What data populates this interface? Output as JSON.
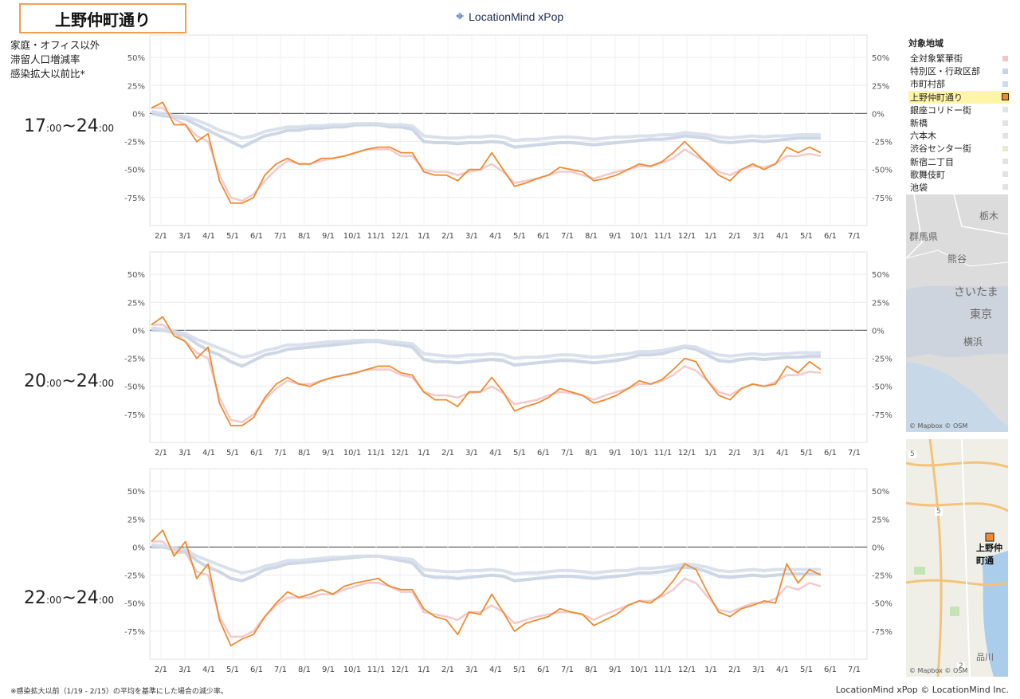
{
  "header": {
    "title": "上野仲町通り",
    "logo": "LocationMind xPop"
  },
  "metric_label": [
    "家庭・オフィス以外",
    "滞留人口増減率",
    "感染拡大以前比*"
  ],
  "time_labels": [
    {
      "start": "17",
      "min1": ":00",
      "sep": "~",
      "end": "24",
      "min2": ":00"
    },
    {
      "start": "20",
      "min1": ":00",
      "sep": "~",
      "end": "24",
      "min2": ":00"
    },
    {
      "start": "22",
      "min1": ":00",
      "sep": "~",
      "end": "24",
      "min2": ":00"
    }
  ],
  "legend": {
    "title": "対象地域",
    "items": [
      {
        "label": "全対象繁華街",
        "color": "#f2c4c4"
      },
      {
        "label": "特別区・行政区部",
        "color": "#c9d3e3"
      },
      {
        "label": "市町村部",
        "color": "#d0d9e8"
      },
      {
        "label": "上野仲町通り",
        "color": "#f08a30",
        "selected": true
      },
      {
        "label": "銀座コリドー街",
        "color": "#e3e3e3"
      },
      {
        "label": "新橋",
        "color": "#e3e3e3"
      },
      {
        "label": "六本木",
        "color": "#e3e3e3"
      },
      {
        "label": "渋谷センター街",
        "color": "#e3ecd0"
      },
      {
        "label": "新宿二丁目",
        "color": "#e3e3e3"
      },
      {
        "label": "歌舞伎町",
        "color": "#e3e3e3"
      },
      {
        "label": "池袋",
        "color": "#e3e3e3"
      }
    ]
  },
  "maps": {
    "map1": {
      "labels": [
        "栃木",
        "群馬県",
        "熊谷",
        "さいたま",
        "東京",
        "横浜"
      ],
      "credit": "© Mapbox © OSM"
    },
    "map2": {
      "labels": [
        "上野仲町通",
        "品川",
        "5",
        "5",
        "2"
      ],
      "credit": "© Mapbox © OSM"
    }
  },
  "chart_data": [
    {
      "type": "line",
      "title": "",
      "x_ticks": [
        "2/1",
        "3/1",
        "4/1",
        "5/1",
        "6/1",
        "7/1",
        "8/1",
        "9/1",
        "10/1",
        "11/1",
        "12/1",
        "1/1",
        "2/1",
        "3/1",
        "4/1",
        "5/1",
        "6/1",
        "7/1",
        "8/1",
        "9/1",
        "10/1",
        "11/1",
        "12/1",
        "1/1",
        "2/1",
        "3/1",
        "4/1",
        "5/1",
        "6/1",
        "7/1"
      ],
      "y_ticks": [
        "50%",
        "25%",
        "0%",
        "-25%",
        "-50%",
        "-75%"
      ],
      "ylim": [
        -100,
        70
      ],
      "series": [
        {
          "name": "上野仲町通り",
          "role": "selected",
          "values": [
            5,
            10,
            -10,
            -10,
            -25,
            -18,
            -60,
            -80,
            -80,
            -75,
            -55,
            -45,
            -40,
            -45,
            -45,
            -40,
            -40,
            -38,
            -35,
            -32,
            -30,
            -30,
            -35,
            -35,
            -52,
            -55,
            -55,
            -60,
            -50,
            -50,
            -35,
            -50,
            -65,
            -62,
            -58,
            -55,
            -48,
            -50,
            -52,
            -60,
            -58,
            -55,
            -50,
            -45,
            -47,
            -43,
            -35,
            -25,
            -35,
            -45,
            -55,
            -60,
            -50,
            -45,
            -50,
            -45,
            -30,
            -35,
            -30,
            -35
          ]
        },
        {
          "name": "全対象繁華街",
          "role": "context",
          "values": [
            5,
            5,
            -5,
            -10,
            -20,
            -25,
            -55,
            -75,
            -78,
            -72,
            -60,
            -50,
            -42,
            -45,
            -45,
            -42,
            -40,
            -38,
            -35,
            -32,
            -32,
            -32,
            -38,
            -38,
            -50,
            -52,
            -52,
            -55,
            -52,
            -50,
            -45,
            -52,
            -62,
            -60,
            -58,
            -55,
            -52,
            -52,
            -55,
            -58,
            -55,
            -52,
            -50,
            -47,
            -47,
            -44,
            -40,
            -32,
            -38,
            -44,
            -52,
            -55,
            -50,
            -47,
            -48,
            -45,
            -38,
            -38,
            -36,
            -38
          ]
        },
        {
          "name": "特別区・行政区部",
          "role": "context",
          "values": [
            0,
            -2,
            -3,
            -5,
            -10,
            -15,
            -20,
            -25,
            -30,
            -25,
            -20,
            -18,
            -15,
            -15,
            -13,
            -13,
            -12,
            -12,
            -10,
            -10,
            -10,
            -12,
            -12,
            -14,
            -25,
            -26,
            -26,
            -27,
            -26,
            -26,
            -25,
            -26,
            -30,
            -29,
            -28,
            -27,
            -26,
            -26,
            -27,
            -28,
            -27,
            -26,
            -25,
            -24,
            -23,
            -23,
            -22,
            -20,
            -21,
            -22,
            -25,
            -26,
            -25,
            -24,
            -25,
            -24,
            -23,
            -22,
            -22,
            -22
          ]
        },
        {
          "name": "市町村部",
          "role": "context",
          "values": [
            2,
            0,
            -2,
            -3,
            -6,
            -10,
            -15,
            -18,
            -22,
            -20,
            -16,
            -14,
            -12,
            -12,
            -11,
            -11,
            -10,
            -10,
            -9,
            -9,
            -9,
            -10,
            -10,
            -11,
            -20,
            -21,
            -22,
            -22,
            -21,
            -21,
            -20,
            -21,
            -24,
            -23,
            -23,
            -22,
            -21,
            -21,
            -22,
            -23,
            -22,
            -21,
            -21,
            -20,
            -20,
            -19,
            -19,
            -17,
            -18,
            -19,
            -21,
            -22,
            -21,
            -20,
            -21,
            -20,
            -20,
            -19,
            -19,
            -19
          ]
        }
      ]
    },
    {
      "type": "line",
      "title": "",
      "x_ticks": [
        "2/1",
        "3/1",
        "4/1",
        "5/1",
        "6/1",
        "7/1",
        "8/1",
        "9/1",
        "10/1",
        "11/1",
        "12/1",
        "1/1",
        "2/1",
        "3/1",
        "4/1",
        "5/1",
        "6/1",
        "7/1",
        "8/1",
        "9/1",
        "10/1",
        "11/1",
        "12/1",
        "1/1",
        "2/1",
        "3/1",
        "4/1",
        "5/1",
        "6/1",
        "7/1"
      ],
      "y_ticks": [
        "50%",
        "25%",
        "0%",
        "-25%",
        "-50%",
        "-75%"
      ],
      "ylim": [
        -100,
        70
      ],
      "series": [
        {
          "name": "上野仲町通り",
          "role": "selected",
          "values": [
            5,
            12,
            -5,
            -10,
            -25,
            -15,
            -65,
            -85,
            -85,
            -78,
            -60,
            -48,
            -42,
            -48,
            -50,
            -45,
            -42,
            -40,
            -38,
            -35,
            -32,
            -32,
            -38,
            -40,
            -55,
            -62,
            -62,
            -68,
            -55,
            -55,
            -42,
            -55,
            -72,
            -68,
            -65,
            -60,
            -52,
            -55,
            -58,
            -65,
            -62,
            -58,
            -52,
            -45,
            -48,
            -44,
            -35,
            -25,
            -28,
            -45,
            -58,
            -62,
            -52,
            -48,
            -50,
            -48,
            -32,
            -38,
            -28,
            -35
          ]
        },
        {
          "name": "全対象繁華街",
          "role": "context",
          "values": [
            5,
            5,
            -2,
            -10,
            -20,
            -25,
            -60,
            -80,
            -82,
            -75,
            -62,
            -52,
            -45,
            -48,
            -48,
            -45,
            -42,
            -40,
            -38,
            -35,
            -35,
            -35,
            -40,
            -42,
            -55,
            -58,
            -58,
            -60,
            -56,
            -55,
            -50,
            -56,
            -66,
            -64,
            -62,
            -58,
            -55,
            -56,
            -58,
            -62,
            -58,
            -55,
            -52,
            -48,
            -48,
            -45,
            -40,
            -32,
            -36,
            -45,
            -55,
            -58,
            -52,
            -48,
            -50,
            -46,
            -40,
            -40,
            -37,
            -38
          ]
        },
        {
          "name": "特別区・行政区部",
          "role": "context",
          "values": [
            0,
            0,
            -2,
            -5,
            -12,
            -18,
            -22,
            -28,
            -32,
            -27,
            -22,
            -20,
            -17,
            -16,
            -15,
            -14,
            -13,
            -12,
            -11,
            -10,
            -10,
            -12,
            -13,
            -15,
            -26,
            -28,
            -28,
            -29,
            -28,
            -27,
            -26,
            -27,
            -31,
            -30,
            -29,
            -28,
            -27,
            -27,
            -28,
            -29,
            -28,
            -27,
            -25,
            -22,
            -22,
            -21,
            -18,
            -15,
            -17,
            -22,
            -27,
            -28,
            -26,
            -25,
            -26,
            -25,
            -24,
            -24,
            -23,
            -23
          ]
        },
        {
          "name": "市町村部",
          "role": "context",
          "values": [
            2,
            1,
            -1,
            -3,
            -8,
            -12,
            -16,
            -20,
            -24,
            -22,
            -18,
            -16,
            -13,
            -13,
            -12,
            -11,
            -10,
            -10,
            -9,
            -9,
            -9,
            -10,
            -11,
            -12,
            -21,
            -22,
            -23,
            -23,
            -22,
            -22,
            -21,
            -22,
            -25,
            -24,
            -24,
            -23,
            -22,
            -22,
            -23,
            -24,
            -23,
            -22,
            -21,
            -19,
            -19,
            -18,
            -16,
            -14,
            -15,
            -19,
            -22,
            -23,
            -22,
            -21,
            -22,
            -21,
            -21,
            -20,
            -20,
            -20
          ]
        }
      ]
    },
    {
      "type": "line",
      "title": "",
      "x_ticks": [
        "2/1",
        "3/1",
        "4/1",
        "5/1",
        "6/1",
        "7/1",
        "8/1",
        "9/1",
        "10/1",
        "11/1",
        "12/1",
        "1/1",
        "2/1",
        "3/1",
        "4/1",
        "5/1",
        "6/1",
        "7/1",
        "8/1",
        "9/1",
        "10/1",
        "11/1",
        "12/1",
        "1/1",
        "2/1",
        "3/1",
        "4/1",
        "5/1",
        "6/1",
        "7/1"
      ],
      "y_ticks": [
        "50%",
        "25%",
        "0%",
        "-25%",
        "-50%",
        "-75%"
      ],
      "ylim": [
        -100,
        70
      ],
      "series": [
        {
          "name": "上野仲町通り",
          "role": "selected",
          "values": [
            5,
            15,
            -8,
            5,
            -28,
            -15,
            -65,
            -88,
            -82,
            -78,
            -62,
            -50,
            -40,
            -45,
            -42,
            -38,
            -42,
            -35,
            -32,
            -30,
            -28,
            -35,
            -38,
            -38,
            -55,
            -62,
            -65,
            -78,
            -58,
            -60,
            -42,
            -58,
            -75,
            -68,
            -65,
            -62,
            -55,
            -58,
            -60,
            -70,
            -65,
            -60,
            -52,
            -48,
            -50,
            -42,
            -30,
            -15,
            -20,
            -40,
            -58,
            -62,
            -55,
            -52,
            -48,
            -50,
            -15,
            -32,
            -20,
            -25
          ]
        },
        {
          "name": "全対象繁華街",
          "role": "context",
          "values": [
            5,
            5,
            -5,
            -5,
            -22,
            -25,
            -62,
            -80,
            -80,
            -75,
            -62,
            -52,
            -45,
            -45,
            -45,
            -42,
            -42,
            -38,
            -35,
            -32,
            -32,
            -35,
            -40,
            -40,
            -58,
            -60,
            -62,
            -65,
            -58,
            -58,
            -52,
            -58,
            -68,
            -65,
            -62,
            -60,
            -58,
            -58,
            -60,
            -65,
            -60,
            -56,
            -52,
            -48,
            -48,
            -44,
            -38,
            -28,
            -32,
            -44,
            -56,
            -58,
            -54,
            -50,
            -50,
            -46,
            -35,
            -38,
            -32,
            -35
          ]
        },
        {
          "name": "特別区・行政区部",
          "role": "context",
          "values": [
            0,
            0,
            -2,
            -4,
            -12,
            -18,
            -22,
            -28,
            -30,
            -26,
            -20,
            -18,
            -15,
            -14,
            -13,
            -12,
            -11,
            -10,
            -9,
            -8,
            -8,
            -10,
            -12,
            -14,
            -25,
            -27,
            -27,
            -28,
            -27,
            -26,
            -25,
            -26,
            -30,
            -29,
            -28,
            -27,
            -26,
            -26,
            -27,
            -28,
            -27,
            -26,
            -25,
            -23,
            -23,
            -22,
            -20,
            -18,
            -19,
            -22,
            -26,
            -27,
            -26,
            -25,
            -26,
            -25,
            -24,
            -24,
            -24,
            -24
          ]
        },
        {
          "name": "市町村部",
          "role": "context",
          "values": [
            2,
            1,
            -1,
            -2,
            -8,
            -12,
            -16,
            -20,
            -23,
            -21,
            -17,
            -15,
            -12,
            -12,
            -11,
            -10,
            -9,
            -9,
            -8,
            -8,
            -8,
            -9,
            -10,
            -11,
            -20,
            -21,
            -22,
            -22,
            -21,
            -21,
            -20,
            -21,
            -24,
            -23,
            -23,
            -22,
            -21,
            -21,
            -22,
            -23,
            -22,
            -21,
            -21,
            -19,
            -19,
            -18,
            -17,
            -15,
            -16,
            -18,
            -21,
            -22,
            -21,
            -20,
            -21,
            -20,
            -20,
            -20,
            -20,
            -20
          ]
        }
      ]
    }
  ],
  "footer": {
    "note": "※感染拡大以前（1/19 - 2/15）の平均を基準にした場合の減少率。",
    "copyright": "LocationMind xPop © LocationMind Inc."
  },
  "colors": {
    "selected": "#f08a30",
    "context_red": "#f2c4c4",
    "context_blue": "#c9d3e3",
    "context_gray": "#dddddd",
    "zero_line": "#666666",
    "grid": "#ececec"
  }
}
